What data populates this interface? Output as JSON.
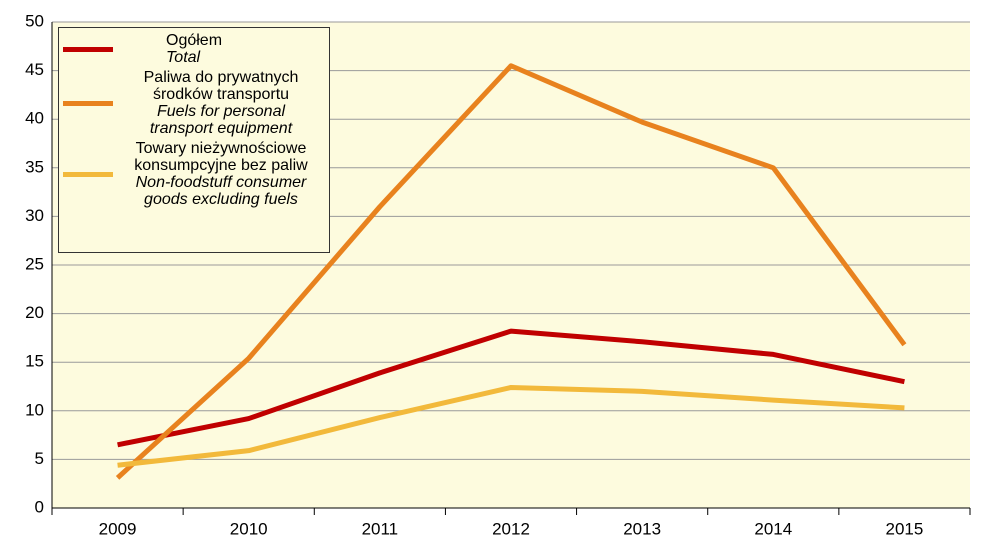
{
  "chart_data": {
    "type": "line",
    "categories": [
      "2009",
      "2010",
      "2011",
      "2012",
      "2013",
      "2014",
      "2015"
    ],
    "series": [
      {
        "name": "Ogółem",
        "name_en": "Total",
        "color": "#c00000",
        "values": [
          6.5,
          9.2,
          13.9,
          18.2,
          17.1,
          15.8,
          13.0
        ]
      },
      {
        "name": "Paliwa do prywatnych środków transportu",
        "name_en": "Fuels for personal transport equipment",
        "color": "#e8821e",
        "values": [
          3.1,
          15.4,
          31.0,
          45.5,
          39.7,
          35.0,
          16.8
        ]
      },
      {
        "name": "Towary nieżywnościowe konsumpcyjne bez paliw",
        "name_en": "Non-foodstuff consumer goods excluding fuels",
        "color": "#f2b93b",
        "values": [
          4.4,
          5.9,
          9.3,
          12.4,
          12.0,
          11.1,
          10.3
        ]
      }
    ],
    "ylim": [
      0,
      50
    ],
    "yticks": [
      0,
      5,
      10,
      15,
      20,
      25,
      30,
      35,
      40,
      45,
      50
    ],
    "grid": true,
    "legend": "top-left"
  }
}
